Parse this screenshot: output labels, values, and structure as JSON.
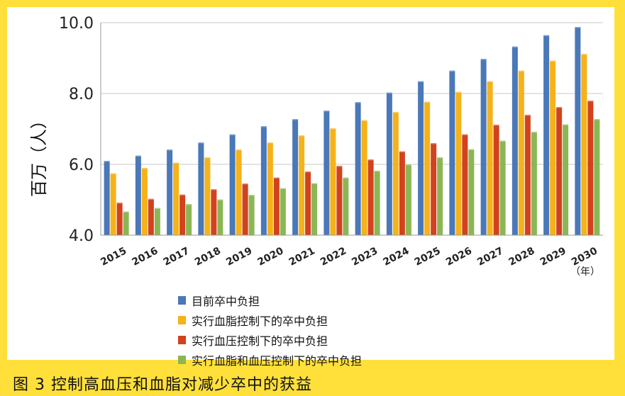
{
  "caption": "图 3  控制高血压和血脂对减少卒中的获益",
  "chart_data": {
    "type": "bar",
    "ylabel": "百万（人）",
    "xlabel": "（年）",
    "ylim": [
      4.0,
      10.0
    ],
    "yticks": [
      "4.0",
      "6.0",
      "8.0",
      "10.0"
    ],
    "ytick_values": [
      4.0,
      6.0,
      8.0,
      10.0
    ],
    "grid": true,
    "categories": [
      "2015",
      "2016",
      "2017",
      "2018",
      "2019",
      "2020",
      "2021",
      "2022",
      "2023",
      "2024",
      "2025",
      "2026",
      "2027",
      "2028",
      "2029",
      "2030"
    ],
    "series": [
      {
        "name": "目前卒中负担",
        "color": "#4a78b8",
        "values": [
          6.1,
          6.25,
          6.42,
          6.62,
          6.85,
          7.08,
          7.28,
          7.52,
          7.76,
          8.03,
          8.35,
          8.65,
          8.98,
          9.33,
          9.65,
          9.88
        ]
      },
      {
        "name": "实行血脂控制下的卒中负担",
        "color": "#f5b21a",
        "values": [
          5.75,
          5.9,
          6.05,
          6.2,
          6.42,
          6.62,
          6.82,
          7.02,
          7.25,
          7.48,
          7.77,
          8.05,
          8.35,
          8.65,
          8.93,
          9.12
        ]
      },
      {
        "name": "实行血压控制下的卒中负担",
        "color": "#d1421e",
        "values": [
          4.92,
          5.03,
          5.15,
          5.3,
          5.46,
          5.63,
          5.8,
          5.96,
          6.14,
          6.37,
          6.6,
          6.85,
          7.12,
          7.4,
          7.62,
          7.8
        ]
      },
      {
        "name": "实行血脂和血压控制下的卒中负担",
        "color": "#8bb654",
        "values": [
          4.67,
          4.77,
          4.88,
          5.01,
          5.14,
          5.33,
          5.47,
          5.63,
          5.82,
          6.0,
          6.2,
          6.43,
          6.67,
          6.92,
          7.13,
          7.28
        ]
      }
    ]
  }
}
